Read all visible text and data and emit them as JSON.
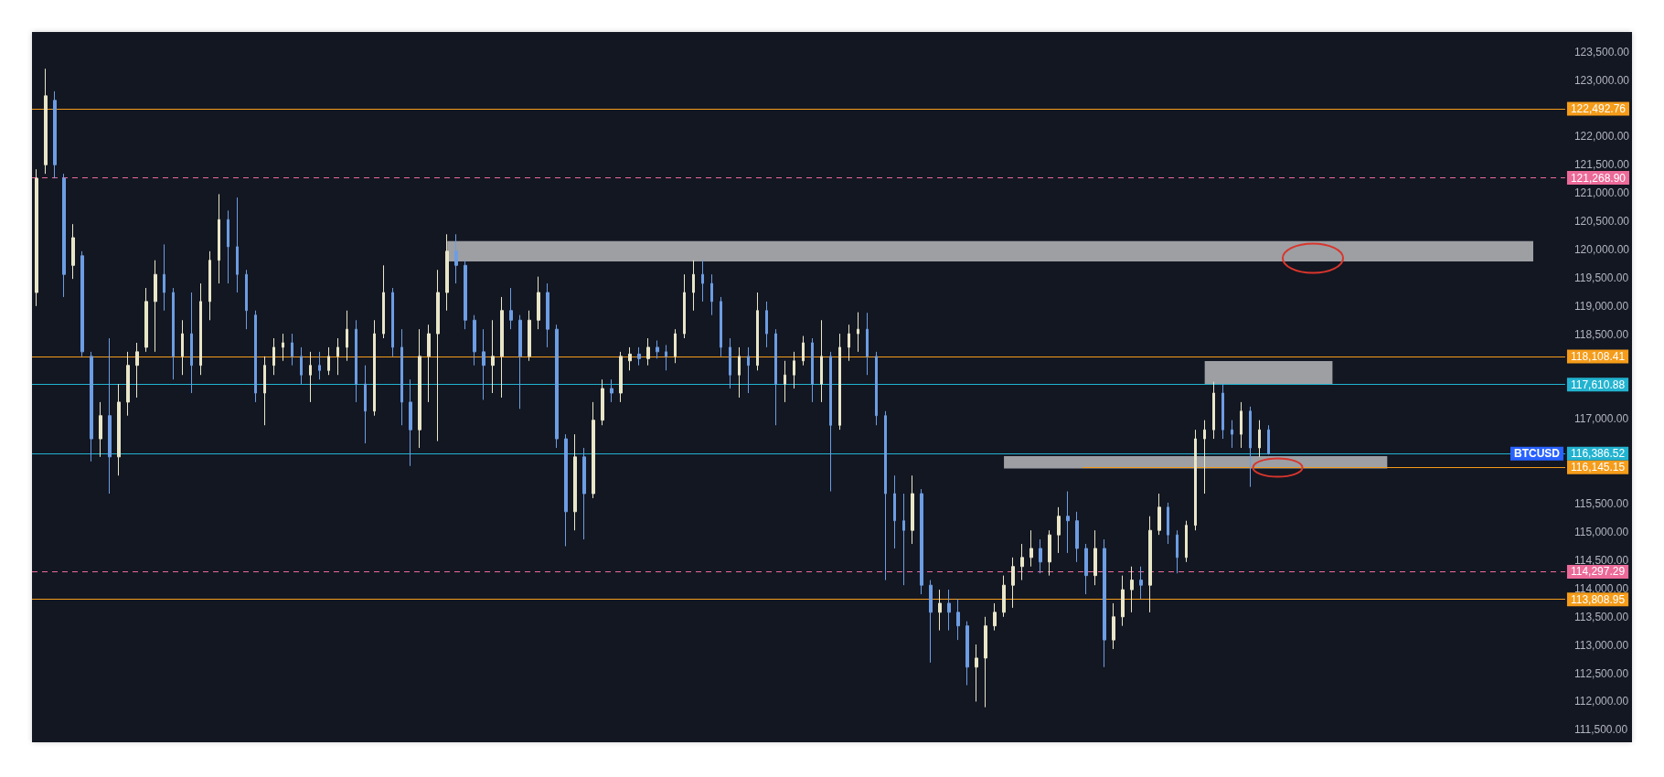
{
  "chart_data": {
    "type": "candlestick",
    "categories": [
      null,
      null,
      null,
      null,
      null,
      null,
      null,
      null,
      null,
      null,
      null,
      null,
      null,
      null,
      null,
      null,
      null,
      null,
      null,
      null,
      null,
      null,
      null,
      null,
      null,
      null,
      null,
      null,
      null,
      null,
      null,
      null,
      null,
      null,
      null,
      null,
      null,
      null,
      null,
      null,
      null,
      null,
      null,
      null,
      null,
      null,
      null,
      null,
      null,
      null,
      null,
      null,
      null,
      null,
      null,
      null,
      null,
      null,
      null,
      null,
      null,
      null,
      null,
      null,
      null,
      null,
      null,
      null,
      null,
      null,
      null,
      null,
      null,
      null,
      null,
      null,
      null,
      null,
      null,
      null,
      null,
      null,
      null,
      null,
      null,
      null,
      null,
      null,
      null,
      null,
      null,
      null,
      null,
      null,
      null,
      null,
      null,
      null,
      null,
      null,
      null,
      null,
      null,
      null,
      null,
      null,
      null,
      null,
      null,
      null,
      null,
      null,
      null,
      null,
      null,
      null,
      null,
      null,
      null,
      null,
      null,
      null,
      null,
      null,
      null,
      null,
      null,
      null,
      null,
      null,
      null,
      null,
      null,
      null,
      null,
      null,
      null,
      null,
      null,
      null,
      null,
      null,
      null,
      null,
      null,
      null,
      null,
      null,
      null,
      null,
      null,
      null,
      null,
      null,
      null,
      null,
      null,
      null,
      null,
      null,
      null,
      null,
      null,
      null,
      null,
      null,
      null,
      null
    ],
    "ohlc": [
      [
        119240,
        121420,
        119000,
        121260
      ],
      [
        121500,
        123200,
        121340,
        122720
      ],
      [
        122640,
        122800,
        121260,
        121500
      ],
      [
        121260,
        121340,
        119160,
        119560
      ],
      [
        119720,
        120450,
        119480,
        120210
      ],
      [
        119890,
        119970,
        118110,
        118190
      ],
      [
        118110,
        118190,
        116250,
        116650
      ],
      [
        116650,
        117300,
        116330,
        117060
      ],
      [
        117060,
        118430,
        115680,
        116330
      ],
      [
        116330,
        117620,
        116000,
        117300
      ],
      [
        117300,
        118190,
        117060,
        117950
      ],
      [
        117950,
        118350,
        117380,
        118190
      ],
      [
        118270,
        119320,
        118190,
        119080
      ],
      [
        119080,
        119810,
        118190,
        119560
      ],
      [
        119560,
        120090,
        118920,
        119240
      ],
      [
        119240,
        119320,
        117700,
        118110
      ],
      [
        118110,
        118750,
        117780,
        118510
      ],
      [
        118510,
        119240,
        117460,
        117950
      ],
      [
        117950,
        119400,
        117780,
        119080
      ],
      [
        119080,
        119970,
        118750,
        119810
      ],
      [
        119810,
        120980,
        119400,
        120530
      ],
      [
        120530,
        120690,
        119400,
        120050
      ],
      [
        120050,
        120920,
        119240,
        119560
      ],
      [
        119560,
        119640,
        118590,
        118920
      ],
      [
        118840,
        118920,
        117300,
        117460
      ],
      [
        117460,
        118110,
        116890,
        117950
      ],
      [
        117950,
        118430,
        117780,
        118270
      ],
      [
        118270,
        118510,
        118030,
        118350
      ],
      [
        118350,
        118510,
        117950,
        118110
      ],
      [
        118110,
        118270,
        117620,
        117780
      ],
      [
        117780,
        118190,
        117300,
        117950
      ],
      [
        117950,
        118190,
        117700,
        117860
      ],
      [
        117860,
        118270,
        117780,
        118110
      ],
      [
        118110,
        118430,
        117780,
        118270
      ],
      [
        118270,
        118920,
        118030,
        118590
      ],
      [
        118590,
        118750,
        117300,
        117620
      ],
      [
        117620,
        117950,
        116570,
        117140
      ],
      [
        117140,
        118750,
        117060,
        118510
      ],
      [
        118510,
        119720,
        118430,
        119240
      ],
      [
        119240,
        119320,
        118110,
        118270
      ],
      [
        118270,
        118590,
        116890,
        117300
      ],
      [
        117300,
        117700,
        116170,
        116810
      ],
      [
        116810,
        118590,
        116490,
        118110
      ],
      [
        118110,
        118670,
        117300,
        118510
      ],
      [
        118510,
        119640,
        116610,
        119240
      ],
      [
        119240,
        120270,
        118920,
        119970
      ],
      [
        119970,
        120270,
        119400,
        119720
      ],
      [
        119720,
        119810,
        118590,
        118750
      ],
      [
        118750,
        118840,
        117950,
        118190
      ],
      [
        118190,
        118590,
        117340,
        117950
      ],
      [
        117950,
        118750,
        117460,
        118110
      ],
      [
        118110,
        119160,
        117380,
        118920
      ],
      [
        118920,
        119320,
        118590,
        118750
      ],
      [
        118750,
        118840,
        117180,
        118110
      ],
      [
        118110,
        118920,
        118030,
        118750
      ],
      [
        118750,
        119520,
        118590,
        119240
      ],
      [
        119240,
        119400,
        118270,
        118590
      ],
      [
        118590,
        118670,
        116490,
        116650
      ],
      [
        116650,
        116730,
        114750,
        115360
      ],
      [
        115360,
        116730,
        115030,
        116330
      ],
      [
        116330,
        116490,
        114870,
        115680
      ],
      [
        115680,
        117300,
        115600,
        116980
      ],
      [
        116980,
        117700,
        116890,
        117540
      ],
      [
        117540,
        117700,
        117300,
        117460
      ],
      [
        117460,
        118190,
        117300,
        118110
      ],
      [
        118030,
        118270,
        117860,
        118150
      ],
      [
        118150,
        118270,
        117950,
        118070
      ],
      [
        118070,
        118430,
        117950,
        118270
      ],
      [
        118270,
        118390,
        118070,
        118190
      ],
      [
        118190,
        118310,
        117860,
        118110
      ],
      [
        118110,
        118590,
        117990,
        118510
      ],
      [
        118510,
        119560,
        118430,
        119240
      ],
      [
        119240,
        119810,
        118920,
        119560
      ],
      [
        119560,
        119810,
        119080,
        119400
      ],
      [
        119400,
        119560,
        118840,
        119080
      ],
      [
        119080,
        119160,
        118110,
        118270
      ],
      [
        118270,
        118430,
        117540,
        117780
      ],
      [
        117780,
        118270,
        117380,
        118110
      ],
      [
        118110,
        118270,
        117460,
        117950
      ],
      [
        117950,
        119240,
        117860,
        118920
      ],
      [
        118920,
        119080,
        118270,
        118510
      ],
      [
        118510,
        118590,
        116890,
        117620
      ],
      [
        117620,
        118030,
        117300,
        117780
      ],
      [
        117780,
        118190,
        117540,
        118030
      ],
      [
        118030,
        118470,
        117950,
        118350
      ],
      [
        118350,
        118430,
        117300,
        117620
      ],
      [
        117620,
        118750,
        117300,
        118110
      ],
      [
        118110,
        118190,
        115720,
        116890
      ],
      [
        116890,
        118510,
        116810,
        118270
      ],
      [
        118270,
        118670,
        118030,
        118510
      ],
      [
        118510,
        118890,
        118190,
        118590
      ],
      [
        118590,
        118880,
        117780,
        118110
      ],
      [
        118110,
        118190,
        116890,
        117060
      ],
      [
        117060,
        117140,
        114150,
        115680
      ],
      [
        115680,
        116000,
        114710,
        115200
      ],
      [
        115200,
        115680,
        114060,
        115030
      ],
      [
        115030,
        116000,
        114790,
        115680
      ],
      [
        115680,
        115760,
        113900,
        114060
      ],
      [
        114060,
        114150,
        112690,
        113580
      ],
      [
        113580,
        113980,
        113260,
        113740
      ],
      [
        113740,
        113980,
        113260,
        113580
      ],
      [
        113580,
        113820,
        113090,
        113340
      ],
      [
        113340,
        113420,
        112290,
        112610
      ],
      [
        112610,
        113010,
        112000,
        112770
      ],
      [
        112770,
        113500,
        111900,
        113340
      ],
      [
        113340,
        113740,
        113260,
        113580
      ],
      [
        113580,
        114230,
        113500,
        114060
      ],
      [
        114060,
        114550,
        113660,
        114390
      ],
      [
        114390,
        114790,
        114150,
        114550
      ],
      [
        114550,
        115030,
        114390,
        114710
      ],
      [
        114710,
        114870,
        114270,
        114470
      ],
      [
        114470,
        115030,
        114230,
        114950
      ],
      [
        114950,
        115440,
        114630,
        115280
      ],
      [
        115280,
        115720,
        114630,
        115200
      ],
      [
        115200,
        115360,
        114470,
        114710
      ],
      [
        114710,
        114790,
        113900,
        114230
      ],
      [
        114230,
        115030,
        114060,
        114710
      ],
      [
        114710,
        114870,
        112610,
        113090
      ],
      [
        113090,
        113740,
        112930,
        113500
      ],
      [
        113500,
        114230,
        113340,
        113980
      ],
      [
        113980,
        114390,
        113580,
        114150
      ],
      [
        114150,
        114390,
        113820,
        114060
      ],
      [
        114060,
        115280,
        113580,
        115030
      ],
      [
        115030,
        115680,
        114950,
        115440
      ],
      [
        115440,
        115520,
        114790,
        114950
      ],
      [
        114950,
        115030,
        114270,
        114550
      ],
      [
        114550,
        115200,
        114470,
        115120
      ],
      [
        115120,
        116810,
        115030,
        116650
      ],
      [
        116650,
        116980,
        115680,
        116810
      ],
      [
        116810,
        117660,
        116650,
        117460
      ],
      [
        117460,
        117620,
        116650,
        116810
      ],
      [
        116810,
        116980,
        116490,
        116730
      ],
      [
        116730,
        117300,
        116490,
        117140
      ],
      [
        117140,
        117220,
        115800,
        116490
      ],
      [
        116490,
        116980,
        116330,
        116810
      ],
      [
        116810,
        116890,
        116370,
        116386.52
      ],
      null,
      null,
      null,
      null,
      null,
      null,
      null,
      null,
      null,
      null,
      null,
      null,
      null,
      null,
      null,
      null,
      null,
      null,
      null,
      null,
      null,
      null,
      null,
      null,
      null,
      null,
      null,
      null,
      null,
      null,
      null,
      null
    ],
    "colors": [
      "#e9e6c8",
      "#e9e6c8",
      "#6d9de3",
      "#6d9de3",
      "#e9e6c8",
      "#6d9de3",
      "#6d9de3",
      "#e9e6c8",
      "#6d9de3",
      "#e9e6c8",
      "#e9e6c8",
      "#e9e6c8",
      "#e9e6c8",
      "#e9e6c8",
      "#6d9de3",
      "#6d9de3",
      "#e9e6c8",
      "#6d9de3",
      "#e9e6c8",
      "#e9e6c8",
      "#e9e6c8",
      "#6d9de3",
      "#6d9de3",
      "#6d9de3",
      "#6d9de3",
      "#e9e6c8",
      "#e9e6c8",
      "#e9e6c8",
      "#6d9de3",
      "#6d9de3",
      "#e9e6c8",
      "#6d9de3",
      "#e9e6c8",
      "#e9e6c8",
      "#e9e6c8",
      "#6d9de3",
      "#6d9de3",
      "#e9e6c8",
      "#e9e6c8",
      "#6d9de3",
      "#6d9de3",
      "#6d9de3",
      "#e9e6c8",
      "#e9e6c8",
      "#e9e6c8",
      "#e9e6c8",
      "#6d9de3",
      "#6d9de3",
      "#6d9de3",
      "#6d9de3",
      "#e9e6c8",
      "#e9e6c8",
      "#6d9de3",
      "#6d9de3",
      "#e9e6c8",
      "#e9e6c8",
      "#6d9de3",
      "#6d9de3",
      "#6d9de3",
      "#e9e6c8",
      "#6d9de3",
      "#e9e6c8",
      "#e9e6c8",
      "#6d9de3",
      "#e9e6c8",
      "#e9e6c8",
      "#6d9de3",
      "#e9e6c8",
      "#6d9de3",
      "#6d9de3",
      "#e9e6c8",
      "#e9e6c8",
      "#e9e6c8",
      "#6d9de3",
      "#6d9de3",
      "#6d9de3",
      "#6d9de3",
      "#e9e6c8",
      "#6d9de3",
      "#e9e6c8",
      "#6d9de3",
      "#6d9de3",
      "#e9e6c8",
      "#e9e6c8",
      "#e9e6c8",
      "#6d9de3",
      "#e9e6c8",
      "#6d9de3",
      "#e9e6c8",
      "#e9e6c8",
      "#e9e6c8",
      "#6d9de3",
      "#6d9de3",
      "#6d9de3",
      "#6d9de3",
      "#6d9de3",
      "#e9e6c8",
      "#6d9de3",
      "#6d9de3",
      "#e9e6c8",
      "#6d9de3",
      "#6d9de3",
      "#6d9de3",
      "#e9e6c8",
      "#e9e6c8",
      "#e9e6c8",
      "#e9e6c8",
      "#e9e6c8",
      "#e9e6c8",
      "#e9e6c8",
      "#6d9de3",
      "#e9e6c8",
      "#e9e6c8",
      "#6d9de3",
      "#6d9de3",
      "#6d9de3",
      "#e9e6c8",
      "#6d9de3",
      "#e9e6c8",
      "#e9e6c8",
      "#e9e6c8",
      "#6d9de3",
      "#e9e6c8",
      "#e9e6c8",
      "#6d9de3",
      "#6d9de3",
      "#e9e6c8",
      "#e9e6c8",
      "#e9e6c8",
      "#e9e6c8",
      "#6d9de3",
      "#6d9de3",
      "#e9e6c8",
      "#6d9de3",
      "#e9e6c8",
      "#6d9de3",
      null,
      null,
      null,
      null,
      null,
      null,
      null,
      null,
      null,
      null,
      null,
      null,
      null,
      null,
      null,
      null,
      null,
      null,
      null,
      null,
      null,
      null,
      null,
      null,
      null,
      null,
      null,
      null,
      null,
      null,
      null,
      null
    ],
    "ylim": [
      111280,
      123850
    ],
    "yticks": [
      {
        "value": 111500,
        "label": "111,500.00"
      },
      {
        "value": 112000,
        "label": "112,000.00"
      },
      {
        "value": 112500,
        "label": "112,500.00"
      },
      {
        "value": 113000,
        "label": "113,000.00"
      },
      {
        "value": 113500,
        "label": "113,500.00"
      },
      {
        "value": 114000,
        "label": "114,000.00"
      },
      {
        "value": 114500,
        "label": "114,500.00"
      },
      {
        "value": 115000,
        "label": "115,000.00"
      },
      {
        "value": 115500,
        "label": "115,500.00"
      },
      {
        "value": 117000,
        "label": "117,000.00"
      },
      {
        "value": 118500,
        "label": "118,500.00"
      },
      {
        "value": 119000,
        "label": "119,000.00"
      },
      {
        "value": 119500,
        "label": "119,500.00"
      },
      {
        "value": 120000,
        "label": "120,000.00"
      },
      {
        "value": 120500,
        "label": "120,500.00"
      },
      {
        "value": 121000,
        "label": "121,000.00"
      },
      {
        "value": 121500,
        "label": "121,500.00"
      },
      {
        "value": 122000,
        "label": "122,000.00"
      },
      {
        "value": 123000,
        "label": "123,000.00"
      },
      {
        "value": 123500,
        "label": "123,500.00"
      }
    ],
    "tick_labels": "y",
    "ref_lines": [
      {
        "axis": "y",
        "value": 122492.76,
        "label": "122,492.76",
        "color": "#f59c1a",
        "line_style": "solid"
      },
      {
        "axis": "y",
        "value": 121268.9,
        "label": "121,268.90",
        "color": "#ec6a98",
        "line_style": "dashed"
      },
      {
        "axis": "y",
        "value": 118108.41,
        "label": "118,108.41",
        "color": "#f59c1a",
        "line_style": "solid"
      },
      {
        "axis": "y",
        "value": 117610.88,
        "label": "117,610.88",
        "color": "#22b3d0",
        "line_style": "solid"
      },
      {
        "axis": "y",
        "value": 116386.52,
        "label": "116,386.52",
        "color": "#22b3d0",
        "line_style": "solid"
      },
      {
        "axis": "y",
        "value": 116145.15,
        "label": "116,145.15",
        "color": "#f59c1a",
        "line_style": "solid"
      },
      {
        "axis": "y",
        "value": 114297.29,
        "label": "114,297.29",
        "color": "#ec6a98",
        "line_style": "dashed"
      },
      {
        "axis": "y",
        "value": 113808.95,
        "label": "113,808.95",
        "color": "#f59c1a",
        "line_style": "solid"
      }
    ],
    "bands": [
      {
        "axis": "y",
        "from": 119790,
        "to": 120150,
        "color": "#9d9fa3"
      },
      {
        "axis": "y",
        "from": 117620,
        "to": 118025,
        "color": "#9d9fa3"
      },
      {
        "axis": "y",
        "from": 116125,
        "to": 116345,
        "color": "#9d9fa3"
      }
    ],
    "annotations": [
      {
        "text": "BTCUSD",
        "y": 116386.52
      }
    ]
  }
}
